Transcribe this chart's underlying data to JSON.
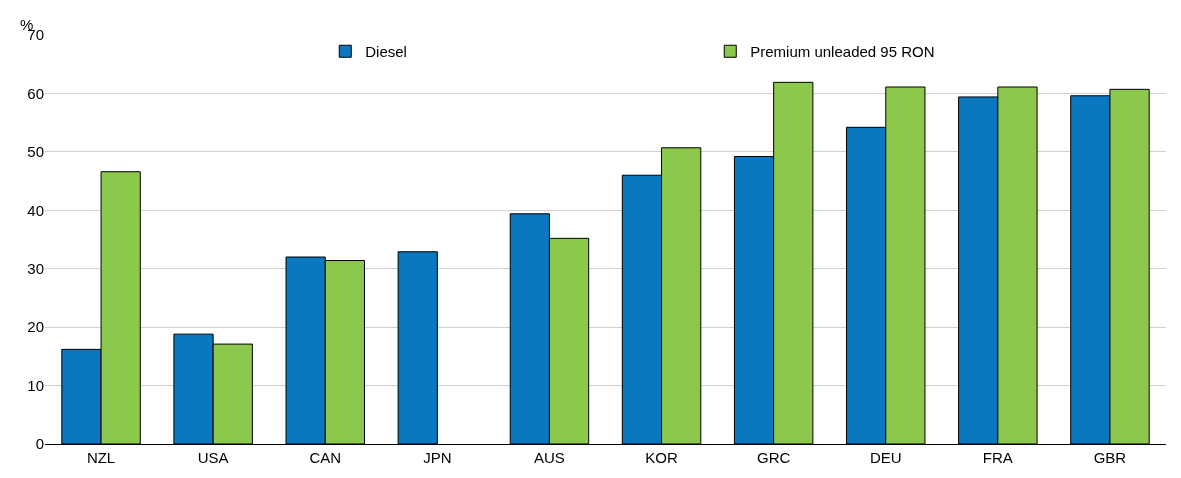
{
  "chart_data": {
    "type": "bar",
    "ylabel": "%",
    "categories": [
      "NZL",
      "USA",
      "CAN",
      "JPN",
      "AUS",
      "KOR",
      "GRC",
      "DEU",
      "FRA",
      "GBR"
    ],
    "series": [
      {
        "name": "Diesel",
        "color": "#0a77c0",
        "values": [
          16.2,
          18.8,
          32.0,
          32.9,
          39.4,
          46.0,
          49.2,
          54.2,
          59.4,
          59.6
        ]
      },
      {
        "name": "Premium unleaded 95 RON",
        "color": "#8cc84b",
        "values": [
          46.6,
          17.1,
          31.4,
          null,
          35.2,
          50.7,
          61.9,
          61.1,
          61.1,
          60.7
        ]
      }
    ],
    "ylim": [
      0,
      70
    ],
    "yticks": [
      0,
      10,
      20,
      30,
      40,
      50,
      60,
      70
    ],
    "grid": "y",
    "legend": "top"
  }
}
